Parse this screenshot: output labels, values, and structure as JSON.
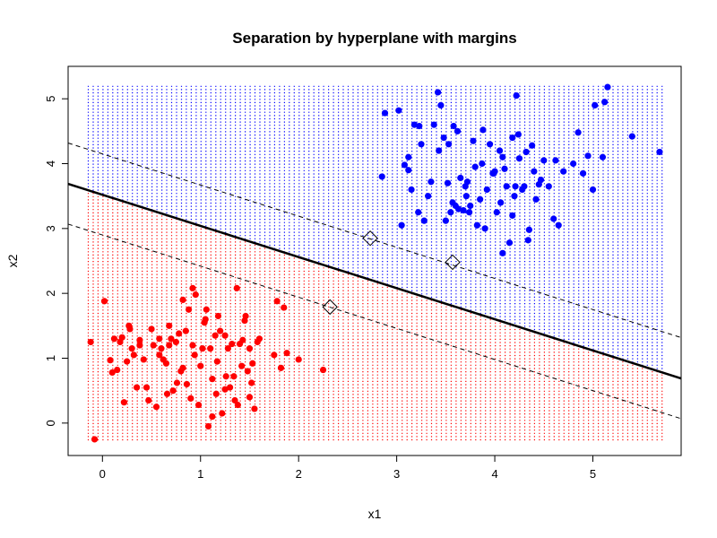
{
  "chart_data": {
    "type": "scatter",
    "title": "Separation by hyperplane with margins",
    "xlabel": "x1",
    "ylabel": "x2",
    "xlim": [
      -0.35,
      5.9
    ],
    "ylim": [
      -0.5,
      5.5
    ],
    "x_ticks": [
      0,
      1,
      2,
      3,
      4,
      5
    ],
    "y_ticks": [
      0,
      1,
      2,
      3,
      4,
      5
    ],
    "grid": false,
    "legend": "none",
    "colors": {
      "class_red": "#ff0000",
      "class_blue": "#0000ff",
      "boundary": "#000000"
    },
    "region_grid": {
      "x_range": [
        -0.15,
        5.7
      ],
      "y_range": [
        -0.25,
        5.2
      ],
      "step": 0.05
    },
    "hyperplane": {
      "intercept": 3.52,
      "slope": -0.48
    },
    "margins": [
      {
        "intercept": 4.15,
        "slope": -0.48
      },
      {
        "intercept": 2.9,
        "slope": -0.48
      }
    ],
    "support_vectors": [
      {
        "x": 2.73,
        "y": 2.85
      },
      {
        "x": 3.57,
        "y": 2.48
      },
      {
        "x": 2.32,
        "y": 1.79
      }
    ],
    "series": [
      {
        "color": "#ff0000",
        "x": [
          -0.12,
          -0.08,
          0.02,
          0.08,
          0.1,
          0.12,
          0.15,
          0.18,
          0.2,
          0.22,
          0.25,
          0.27,
          0.3,
          0.32,
          0.35,
          0.38,
          0.42,
          0.45,
          0.5,
          0.52,
          0.55,
          0.58,
          0.6,
          0.62,
          0.65,
          0.68,
          0.7,
          0.72,
          0.75,
          0.78,
          0.8,
          0.82,
          0.85,
          0.88,
          0.9,
          0.92,
          0.95,
          0.98,
          1.0,
          1.02,
          1.05,
          1.08,
          1.1,
          1.12,
          1.15,
          1.18,
          1.2,
          1.22,
          1.25,
          1.28,
          1.3,
          1.32,
          1.35,
          1.38,
          1.4,
          1.42,
          1.45,
          1.48,
          1.5,
          1.52,
          1.55,
          1.58,
          1.6,
          1.75,
          1.78,
          1.82,
          1.85,
          1.88,
          2.0,
          2.25,
          0.38,
          0.47,
          0.58,
          0.68,
          0.82,
          0.92,
          1.04,
          1.12,
          1.25,
          1.37,
          1.46,
          1.53,
          0.28,
          0.76,
          1.17,
          1.43,
          1.06,
          0.94,
          1.16,
          1.34,
          1.5,
          0.66,
          0.86,
          1.26
        ],
        "y": [
          1.25,
          -0.25,
          1.88,
          0.97,
          0.78,
          1.3,
          0.82,
          1.25,
          1.32,
          0.32,
          0.95,
          1.5,
          1.15,
          1.05,
          0.55,
          1.28,
          0.98,
          0.55,
          1.45,
          1.2,
          0.25,
          1.3,
          1.15,
          0.98,
          0.92,
          1.5,
          1.3,
          0.5,
          1.25,
          1.38,
          0.8,
          0.85,
          1.42,
          1.75,
          0.38,
          2.08,
          1.98,
          0.28,
          0.88,
          1.15,
          1.6,
          -0.05,
          1.15,
          0.1,
          1.35,
          1.65,
          1.42,
          0.15,
          0.52,
          1.15,
          0.55,
          1.22,
          0.35,
          0.28,
          1.22,
          0.88,
          1.58,
          0.8,
          1.15,
          0.62,
          0.22,
          1.25,
          1.3,
          1.05,
          1.88,
          0.85,
          1.78,
          1.08,
          0.98,
          0.82,
          1.2,
          0.35,
          1.05,
          1.2,
          1.9,
          1.2,
          1.55,
          0.68,
          1.35,
          2.08,
          1.65,
          0.92,
          1.45,
          0.62,
          0.95,
          1.28,
          1.75,
          1.05,
          0.45,
          0.72,
          0.4,
          0.45,
          0.6,
          0.72
        ]
      },
      {
        "color": "#0000ff",
        "x": [
          2.85,
          2.88,
          3.02,
          3.05,
          3.08,
          3.12,
          3.15,
          3.18,
          3.22,
          3.25,
          3.28,
          3.32,
          3.35,
          3.38,
          3.42,
          3.45,
          3.48,
          3.5,
          3.52,
          3.55,
          3.58,
          3.6,
          3.62,
          3.65,
          3.68,
          3.7,
          3.72,
          3.75,
          3.78,
          3.8,
          3.82,
          3.85,
          3.88,
          3.9,
          3.92,
          3.95,
          3.98,
          4.0,
          4.02,
          4.05,
          4.08,
          4.1,
          4.12,
          4.15,
          4.18,
          4.2,
          4.22,
          4.25,
          4.28,
          4.3,
          4.32,
          4.35,
          4.38,
          4.4,
          4.42,
          4.45,
          4.5,
          4.55,
          4.6,
          4.65,
          4.7,
          4.8,
          4.85,
          4.9,
          4.95,
          5.0,
          5.02,
          5.1,
          5.12,
          5.15,
          5.4,
          5.68,
          3.43,
          3.63,
          4.06,
          4.18,
          3.71,
          3.99,
          4.47,
          4.62,
          3.23,
          3.53,
          4.21,
          4.08,
          3.87,
          3.12,
          3.74,
          4.24,
          4.34,
          3.57
        ],
        "y": [
          3.8,
          4.78,
          4.82,
          3.05,
          3.98,
          4.1,
          3.6,
          4.6,
          3.25,
          4.3,
          3.12,
          3.5,
          3.72,
          4.6,
          5.1,
          4.9,
          4.4,
          3.12,
          3.7,
          3.25,
          4.58,
          3.35,
          4.5,
          3.78,
          3.28,
          3.65,
          3.72,
          3.35,
          4.35,
          3.95,
          3.05,
          3.45,
          4.52,
          3.0,
          3.6,
          4.3,
          3.85,
          3.88,
          3.25,
          4.2,
          2.62,
          3.92,
          3.65,
          2.78,
          4.4,
          3.5,
          5.05,
          4.08,
          3.6,
          3.65,
          4.18,
          2.98,
          4.28,
          3.88,
          3.45,
          3.68,
          4.05,
          3.65,
          3.15,
          3.05,
          3.88,
          4.0,
          4.48,
          3.85,
          4.12,
          3.6,
          4.9,
          4.1,
          4.95,
          5.18,
          4.42,
          4.18,
          4.2,
          3.3,
          3.4,
          3.2,
          3.5,
          3.85,
          3.75,
          4.05,
          4.58,
          4.3,
          3.65,
          4.1,
          4.0,
          3.9,
          3.25,
          4.45,
          2.82,
          3.4
        ]
      }
    ]
  }
}
